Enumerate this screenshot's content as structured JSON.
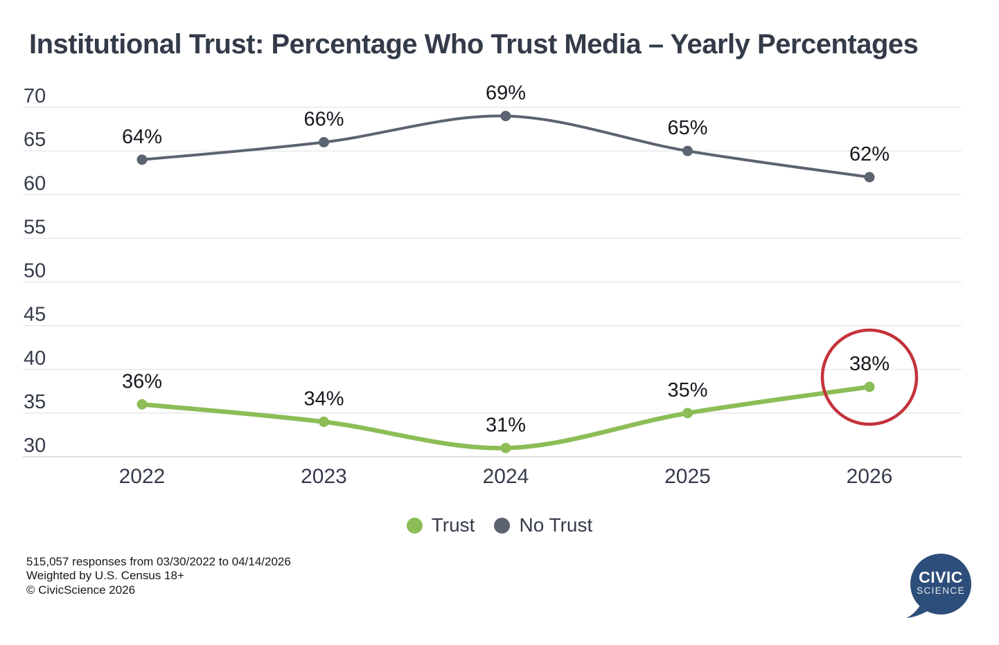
{
  "title": "Institutional Trust: Percentage Who Trust Media – Yearly Percentages",
  "chart_data": {
    "type": "line",
    "title": "Institutional Trust: Percentage Who Trust Media – Yearly Percentages",
    "categories": [
      "2022",
      "2023",
      "2024",
      "2025",
      "2026"
    ],
    "series": [
      {
        "name": "Trust",
        "color": "#8cbd57",
        "line_width": 6.5,
        "values": [
          36,
          34,
          31,
          35,
          38
        ]
      },
      {
        "name": "No Trust",
        "color": "#5c6370",
        "line_width": 4,
        "values": [
          64,
          66,
          69,
          65,
          62
        ]
      }
    ],
    "value_label_suffix": "%",
    "ylim": [
      30,
      70
    ],
    "yticks": [
      30,
      35,
      40,
      45,
      50,
      55,
      60,
      65,
      70
    ],
    "grid": "horizontal",
    "legend_position": "bottom",
    "annotation": {
      "type": "circle",
      "series": "Trust",
      "category": "2026",
      "highlighted_value": "38%",
      "color": "#c4333a"
    }
  },
  "legend": {
    "items": [
      {
        "label": "Trust",
        "color": "#8cbd57"
      },
      {
        "label": "No Trust",
        "color": "#5c6370"
      }
    ]
  },
  "footer": {
    "line1": "515,057 responses from 03/30/2022 to 04/14/2026",
    "line2": "Weighted by U.S. Census 18+",
    "line3": "© CivicScience 2026"
  },
  "logo": {
    "line1": "CIVIC",
    "line2": "SCIENCE",
    "bubble_color": "#2d4e7a"
  }
}
